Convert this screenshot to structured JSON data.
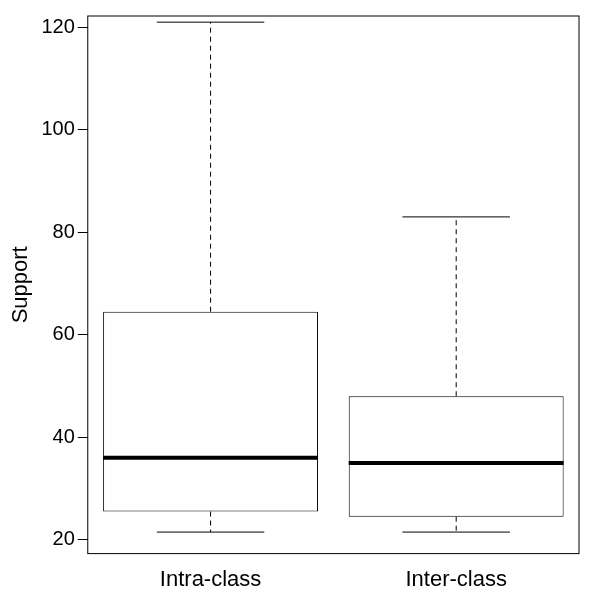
{
  "chart_data": {
    "type": "boxplot",
    "categories": [
      "Intra-class",
      "Inter-class"
    ],
    "boxes": [
      {
        "min": 21.5,
        "q1": 25.5,
        "median": 36,
        "q3": 64.5,
        "max": 121
      },
      {
        "min": 21.5,
        "q1": 24.5,
        "median": 35,
        "q3": 48,
        "max": 83
      }
    ],
    "y_label": "Support",
    "color": "#000000",
    "ylim": [
      17.3,
      122.2
    ],
    "yticks": [
      20,
      40,
      60,
      80,
      100,
      120
    ],
    "grid": false
  }
}
